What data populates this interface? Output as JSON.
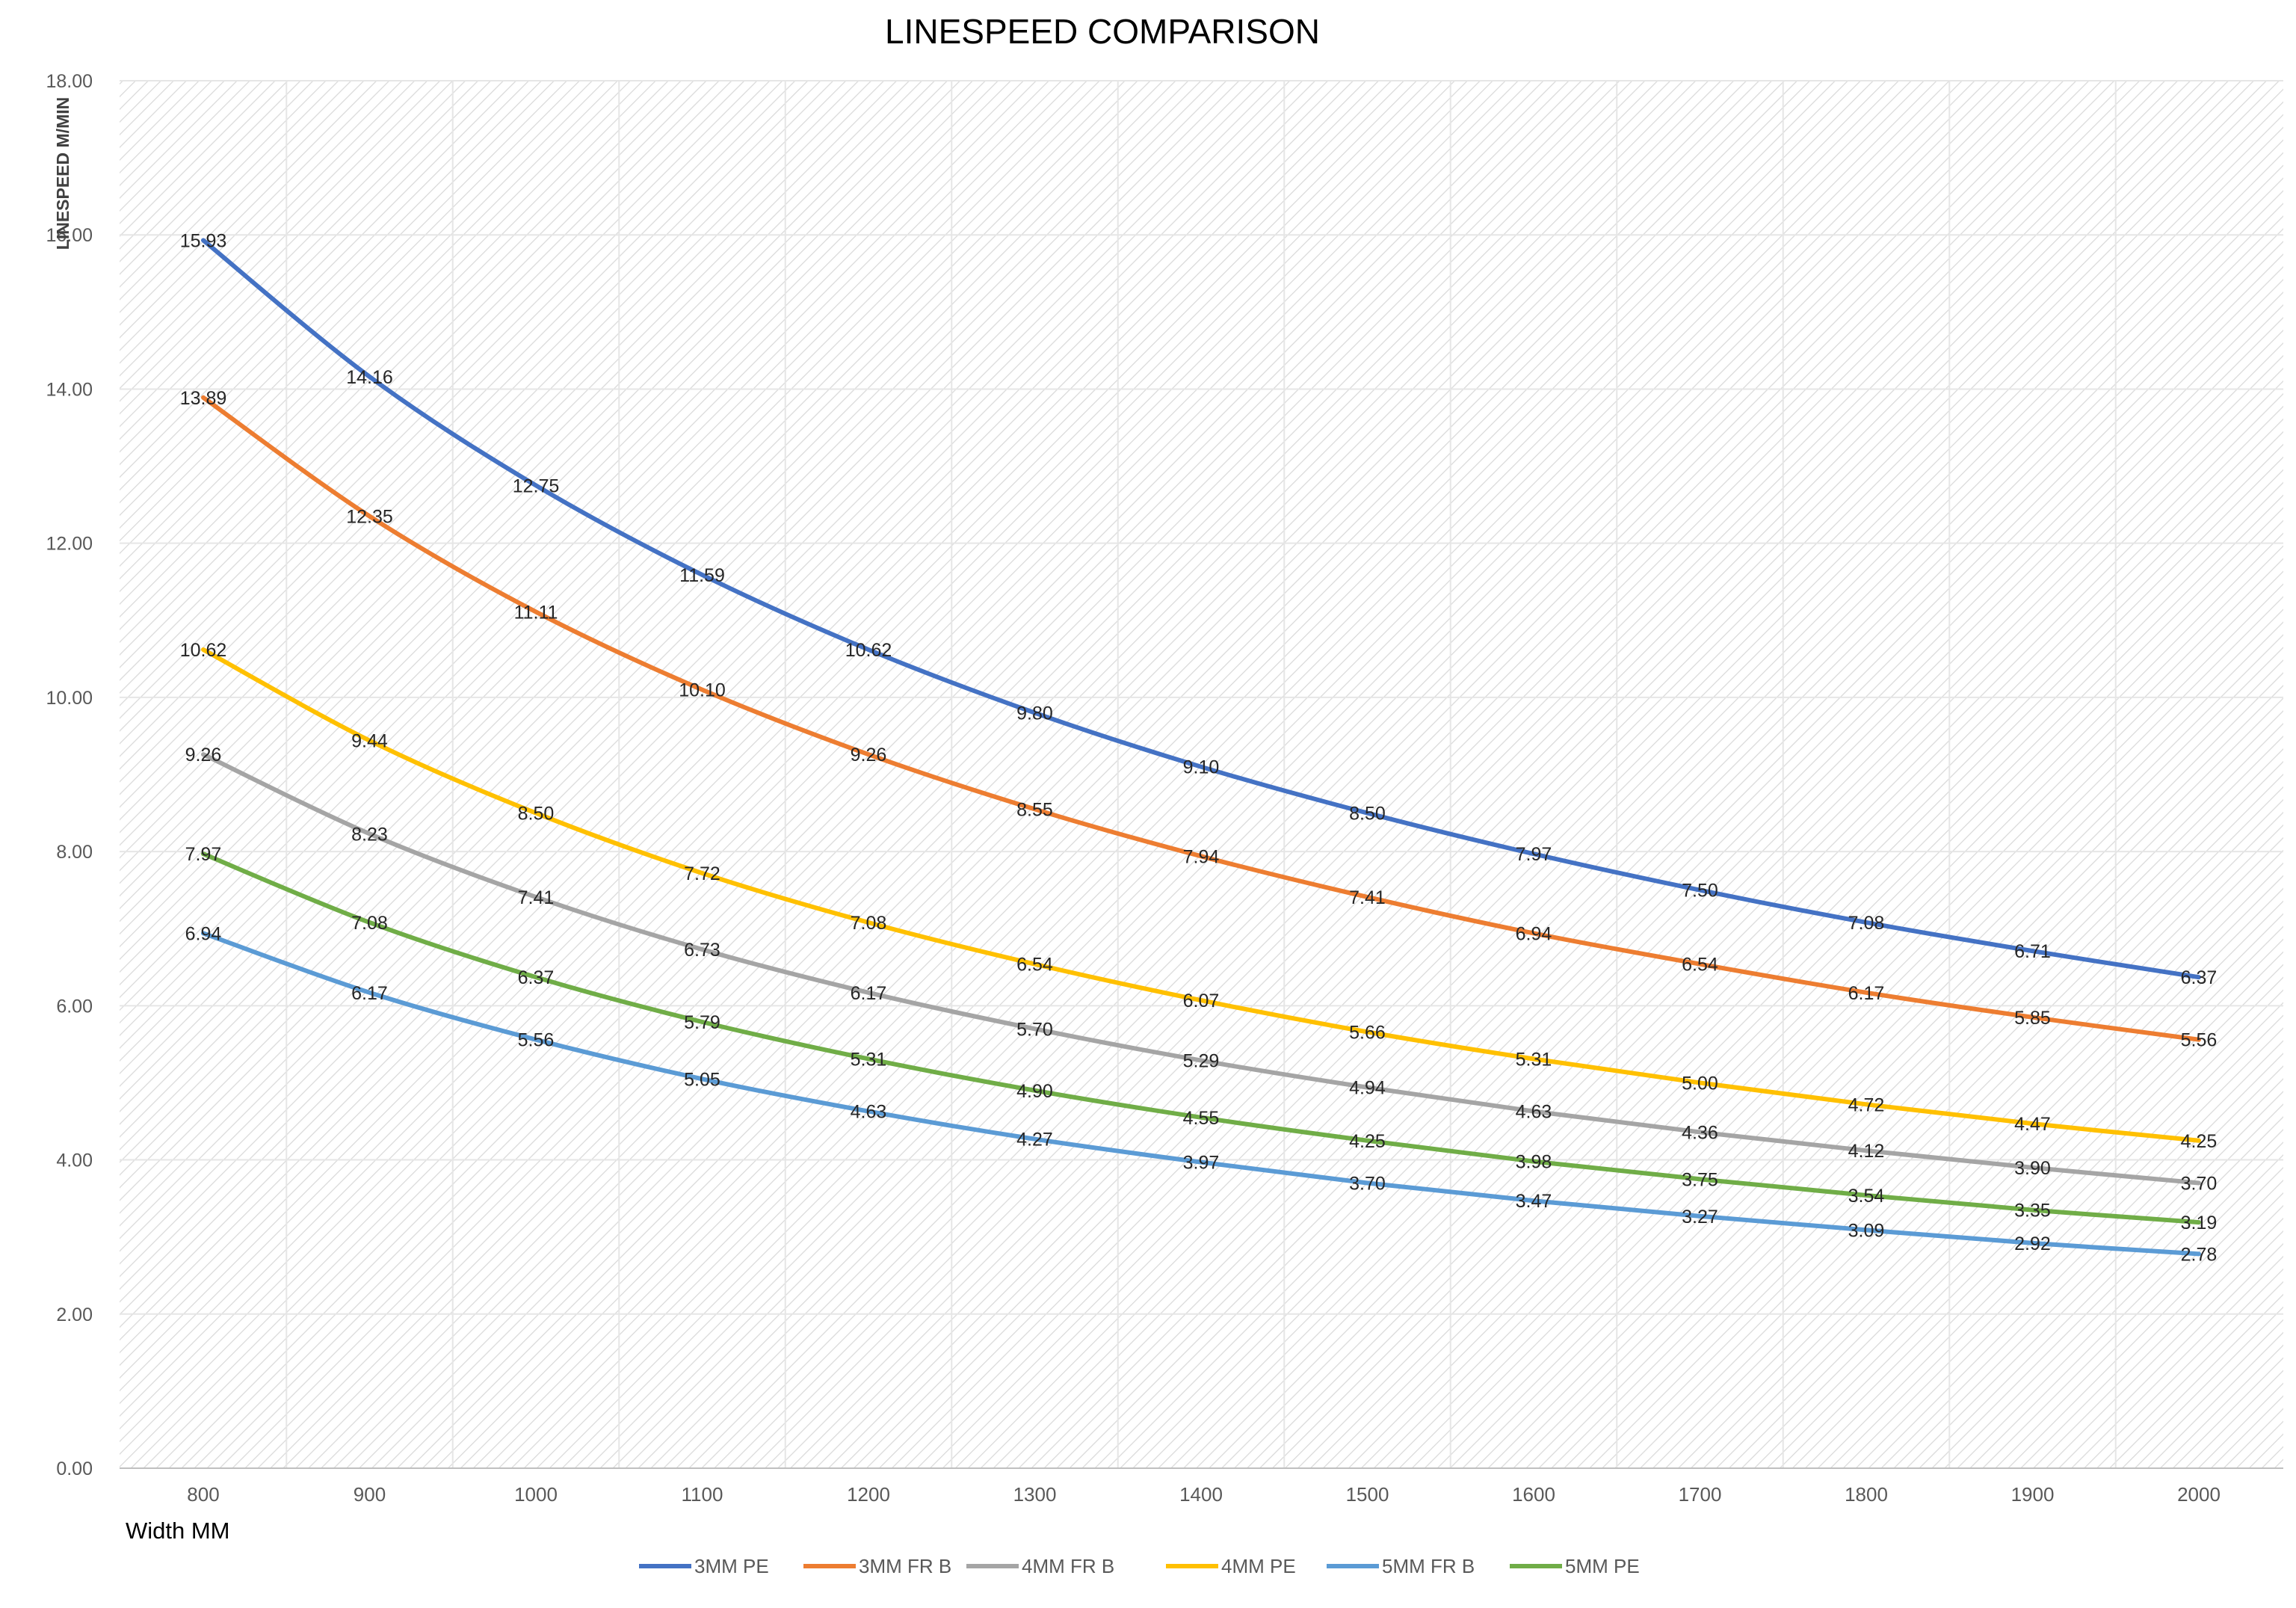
{
  "chart_data": {
    "type": "line",
    "title": "LINESPEED COMPARISON",
    "xlabel": "Width MM",
    "ylabel": "LINESPEED M/MIN",
    "x": [
      800,
      900,
      1000,
      1100,
      1200,
      1300,
      1400,
      1500,
      1600,
      1700,
      1800,
      1900,
      2000
    ],
    "ylim": [
      0,
      18
    ],
    "yticks": [
      "0.00",
      "2.00",
      "4.00",
      "6.00",
      "8.00",
      "10.00",
      "12.00",
      "14.00",
      "16.00",
      "18.00"
    ],
    "grid": true,
    "legend_position": "bottom",
    "series": [
      {
        "name": "3MM PE",
        "color": "#4472C4",
        "values": [
          15.93,
          14.16,
          12.75,
          11.59,
          10.62,
          9.8,
          9.1,
          8.5,
          7.97,
          7.5,
          7.08,
          6.71,
          6.37
        ]
      },
      {
        "name": "3MM FR B",
        "color": "#ED7D31",
        "values": [
          13.89,
          12.35,
          11.11,
          10.1,
          9.26,
          8.55,
          7.94,
          7.41,
          6.94,
          6.54,
          6.17,
          5.85,
          5.56
        ]
      },
      {
        "name": "4MM FR B",
        "color": "#A5A5A5",
        "values": [
          9.26,
          8.23,
          7.41,
          6.73,
          6.17,
          5.7,
          5.29,
          4.94,
          4.63,
          4.36,
          4.12,
          3.9,
          3.7
        ]
      },
      {
        "name": "4MM PE",
        "color": "#FFC000",
        "values": [
          10.62,
          9.44,
          8.5,
          7.72,
          7.08,
          6.54,
          6.07,
          5.66,
          5.31,
          5.0,
          4.72,
          4.47,
          4.25
        ]
      },
      {
        "name": "5MM FR B",
        "color": "#5B9BD5",
        "values": [
          6.94,
          6.17,
          5.56,
          5.05,
          4.63,
          4.27,
          3.97,
          3.7,
          3.47,
          3.27,
          3.09,
          2.92,
          2.78
        ]
      },
      {
        "name": "5MM PE",
        "color": "#70AD47",
        "values": [
          7.97,
          7.08,
          6.37,
          5.79,
          5.31,
          4.9,
          4.55,
          4.25,
          3.98,
          3.75,
          3.54,
          3.35,
          3.19
        ]
      }
    ]
  }
}
